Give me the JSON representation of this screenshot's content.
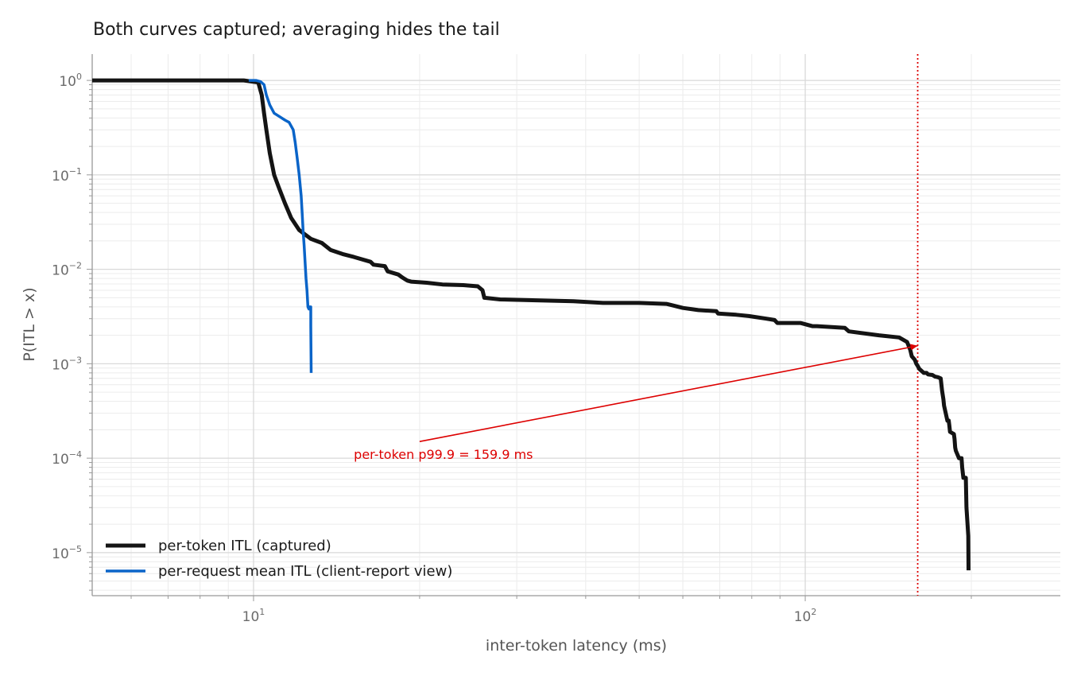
{
  "chart_data": {
    "type": "line",
    "title": "Both curves captured; averaging hides the tail",
    "xlabel": "inter-token latency (ms)",
    "ylabel": "P(ITL > x)",
    "x_scale": "log",
    "y_scale": "log",
    "xlim": [
      5.1,
      290
    ],
    "ylim": [
      3.5e-06,
      1.9
    ],
    "grid": true,
    "legend_position": "bottom-left",
    "x_ticks": [
      {
        "value": 10,
        "base": "10",
        "exp": "1"
      },
      {
        "value": 100,
        "base": "10",
        "exp": "2"
      }
    ],
    "y_ticks": [
      {
        "value": 1,
        "base": "10",
        "exp": "0"
      },
      {
        "value": 0.1,
        "base": "10",
        "exp": "−1"
      },
      {
        "value": 0.01,
        "base": "10",
        "exp": "−2"
      },
      {
        "value": 0.001,
        "base": "10",
        "exp": "−3"
      },
      {
        "value": 0.0001,
        "base": "10",
        "exp": "−4"
      },
      {
        "value": 1e-05,
        "base": "10",
        "exp": "−5"
      }
    ],
    "series": [
      {
        "name": "per-token ITL (captured)",
        "color": "#141414",
        "x": [
          5.1,
          9.6,
          10.2,
          10.35,
          10.45,
          10.55,
          10.7,
          10.9,
          11.1,
          11.4,
          11.7,
          12.1,
          12.7,
          13.3,
          13.8,
          14.5,
          15.2,
          16.3,
          16.5,
          17.3,
          17.5,
          18.3,
          18.6,
          19.0,
          19.3,
          20.6,
          22.0,
          24.0,
          25.5,
          26.0,
          26.2,
          28.0,
          32.0,
          38.0,
          43.0,
          50.0,
          56.0,
          57.0,
          60.0,
          64.0,
          69.0,
          69.5,
          75.0,
          79.0,
          85.0,
          88.0,
          89.0,
          98.0,
          103.0,
          105.0,
          118.0,
          120.0,
          136.0,
          148.0,
          153.0,
          155.0,
          156.0,
          158.0,
          159.0,
          159.9,
          161.0,
          164.0,
          166.0,
          167.0,
          170.0,
          172.0,
          174.0,
          176.0,
          177.0,
          178.0,
          178.5,
          181.0,
          182.0,
          182.5,
          183.0,
          186.0,
          186.5,
          187.0,
          187.5,
          190.0,
          192.0,
          192.5,
          193.5,
          195.5,
          196.0,
          197.5,
          197.7
        ],
        "y": [
          1.0,
          1.0,
          0.95,
          0.7,
          0.45,
          0.3,
          0.17,
          0.1,
          0.075,
          0.05,
          0.035,
          0.026,
          0.021,
          0.019,
          0.016,
          0.0145,
          0.0135,
          0.012,
          0.0112,
          0.0108,
          0.0095,
          0.0088,
          0.0082,
          0.0076,
          0.0074,
          0.0072,
          0.0069,
          0.0068,
          0.0066,
          0.006,
          0.005,
          0.0048,
          0.0047,
          0.0046,
          0.0044,
          0.0044,
          0.0043,
          0.0042,
          0.0039,
          0.0037,
          0.0036,
          0.0034,
          0.0033,
          0.0032,
          0.003,
          0.0029,
          0.0027,
          0.0027,
          0.0025,
          0.0025,
          0.0024,
          0.0022,
          0.002,
          0.0019,
          0.0017,
          0.0014,
          0.0012,
          0.0011,
          0.001,
          0.00095,
          0.00088,
          0.0008,
          0.0008,
          0.00077,
          0.00076,
          0.00073,
          0.00072,
          0.0007,
          0.00052,
          0.00042,
          0.00036,
          0.00025,
          0.00025,
          0.00022,
          0.00019,
          0.00018,
          0.00016,
          0.00013,
          0.00012,
          0.0001,
          0.0001,
          8e-05,
          6.2e-05,
          6.2e-05,
          3e-05,
          1.5e-05,
          6.5e-06
        ]
      },
      {
        "name": "per-request mean ITL (client-report view)",
        "color": "#0a64c8",
        "x": [
          9.8,
          10.1,
          10.3,
          10.45,
          10.55,
          10.7,
          10.9,
          11.1,
          11.4,
          11.6,
          11.8,
          11.9,
          12.0,
          12.1,
          12.2,
          12.25,
          12.3,
          12.35,
          12.4,
          12.45,
          12.5,
          12.55,
          12.6,
          12.6,
          12.7,
          12.7,
          12.72
        ],
        "y": [
          1.0,
          1.0,
          0.97,
          0.9,
          0.7,
          0.55,
          0.45,
          0.42,
          0.38,
          0.36,
          0.3,
          0.22,
          0.15,
          0.1,
          0.06,
          0.04,
          0.025,
          0.018,
          0.012,
          0.008,
          0.006,
          0.004,
          0.0038,
          0.004,
          0.004,
          0.0025,
          0.0008
        ]
      }
    ],
    "reference_line": {
      "x": 159.9,
      "color": "#dd0000",
      "style": "dotted"
    },
    "annotation": {
      "text": "per-token p99.9 = 159.9 ms",
      "color": "#dd0000",
      "text_x": 15.2,
      "text_y": 9.8e-05,
      "tail_x": 20.0,
      "tail_y": 0.00015,
      "head_x": 159.9,
      "head_y": 0.00155
    }
  }
}
